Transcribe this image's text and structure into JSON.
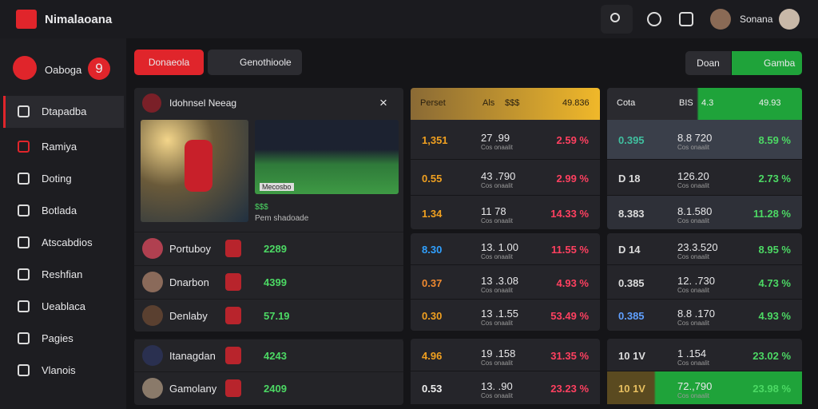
{
  "header": {
    "brand": "Nimalaoana",
    "user": "Sonana"
  },
  "sidebar": {
    "account": {
      "label": "Oaboga",
      "badge": "9"
    },
    "nav": [
      "Dtapadba",
      "Ramiya",
      "Doting",
      "Botlada",
      "Atscabdios",
      "Reshfian",
      "Ueablaca",
      "Pagies",
      "Vlanois"
    ]
  },
  "tabs": {
    "primary": [
      "Donaeola",
      "Genothioole"
    ],
    "right": [
      "Doan",
      "Gamba"
    ]
  },
  "featured": {
    "title": "Idohnsel Neeag",
    "image_caption": "Mecosbo",
    "score": "$$$",
    "caption": "Pem shadoade",
    "rows": [
      {
        "team": "Portuboy",
        "value": "2289"
      },
      {
        "team": "Dnarbon",
        "value": "4399"
      },
      {
        "team": "Denlaby",
        "value": "57.19"
      }
    ]
  },
  "second": {
    "rows": [
      {
        "team": "Itanagdan",
        "value": "4243"
      },
      {
        "team": "Gamolany",
        "value": "2409"
      }
    ]
  },
  "odds_left": {
    "header": [
      "Perset",
      "Als",
      "$$$",
      "49.836"
    ],
    "rows": [
      {
        "a": "1,351",
        "b": "27 .99",
        "sub": "Cos onaalit",
        "c": "2.59 %"
      },
      {
        "a": "0.55",
        "b": "43 .790",
        "sub": "Cos onaalit",
        "c": "2.99 %"
      },
      {
        "a": "1.34",
        "b": "11  78",
        "sub": "Cos onaalit",
        "c": "14.33 %"
      },
      {
        "a": "8.30",
        "b": "13. 1.00",
        "sub": "Cos onaalit",
        "c": "11.55 %"
      },
      {
        "a": "0.37",
        "b": "13 .3.08",
        "sub": "Cos onaalit",
        "c": "4.93 %"
      },
      {
        "a": "0.30",
        "b": "13 .1.55",
        "sub": "Cos onaalit",
        "c": "53.49 %"
      },
      {
        "a": "4.96",
        "b": "19 .158",
        "sub": "Cos onaalit",
        "c": "31.35 %"
      },
      {
        "a": "0.53",
        "b": "13. .90",
        "sub": "Cos onaalit",
        "c": "23.23 %"
      }
    ]
  },
  "odds_right": {
    "header": [
      "Cota",
      "BIS",
      "4.3",
      "49.93"
    ],
    "rows": [
      {
        "a": "0.395",
        "b": "8.8 720",
        "sub": "Cos onaalit",
        "c": "8.59 %"
      },
      {
        "a": "D 18",
        "b": "126.20",
        "sub": "Cos onaalit",
        "c": "2.73 %"
      },
      {
        "a": "8.383",
        "b": "8.1.580",
        "sub": "Cos onaalit",
        "c": "11.28 %"
      },
      {
        "a": "D 14",
        "b": "23.3.520",
        "sub": "Cos onaalit",
        "c": "8.95 %"
      },
      {
        "a": "0.385",
        "b": "12. .730",
        "sub": "Cos onaalit",
        "c": "4.73 %"
      },
      {
        "a": "0.385",
        "b": "8.8 .170",
        "sub": "Cos onaalit",
        "c": "4.93 %"
      },
      {
        "a": "10 1V",
        "b": "1 .154",
        "sub": "Cos onaalit",
        "c": "23.02 %"
      },
      {
        "a": "10 1V",
        "b": "72.,790",
        "sub": "Cos onaalit",
        "c": "23.98 %"
      }
    ]
  }
}
